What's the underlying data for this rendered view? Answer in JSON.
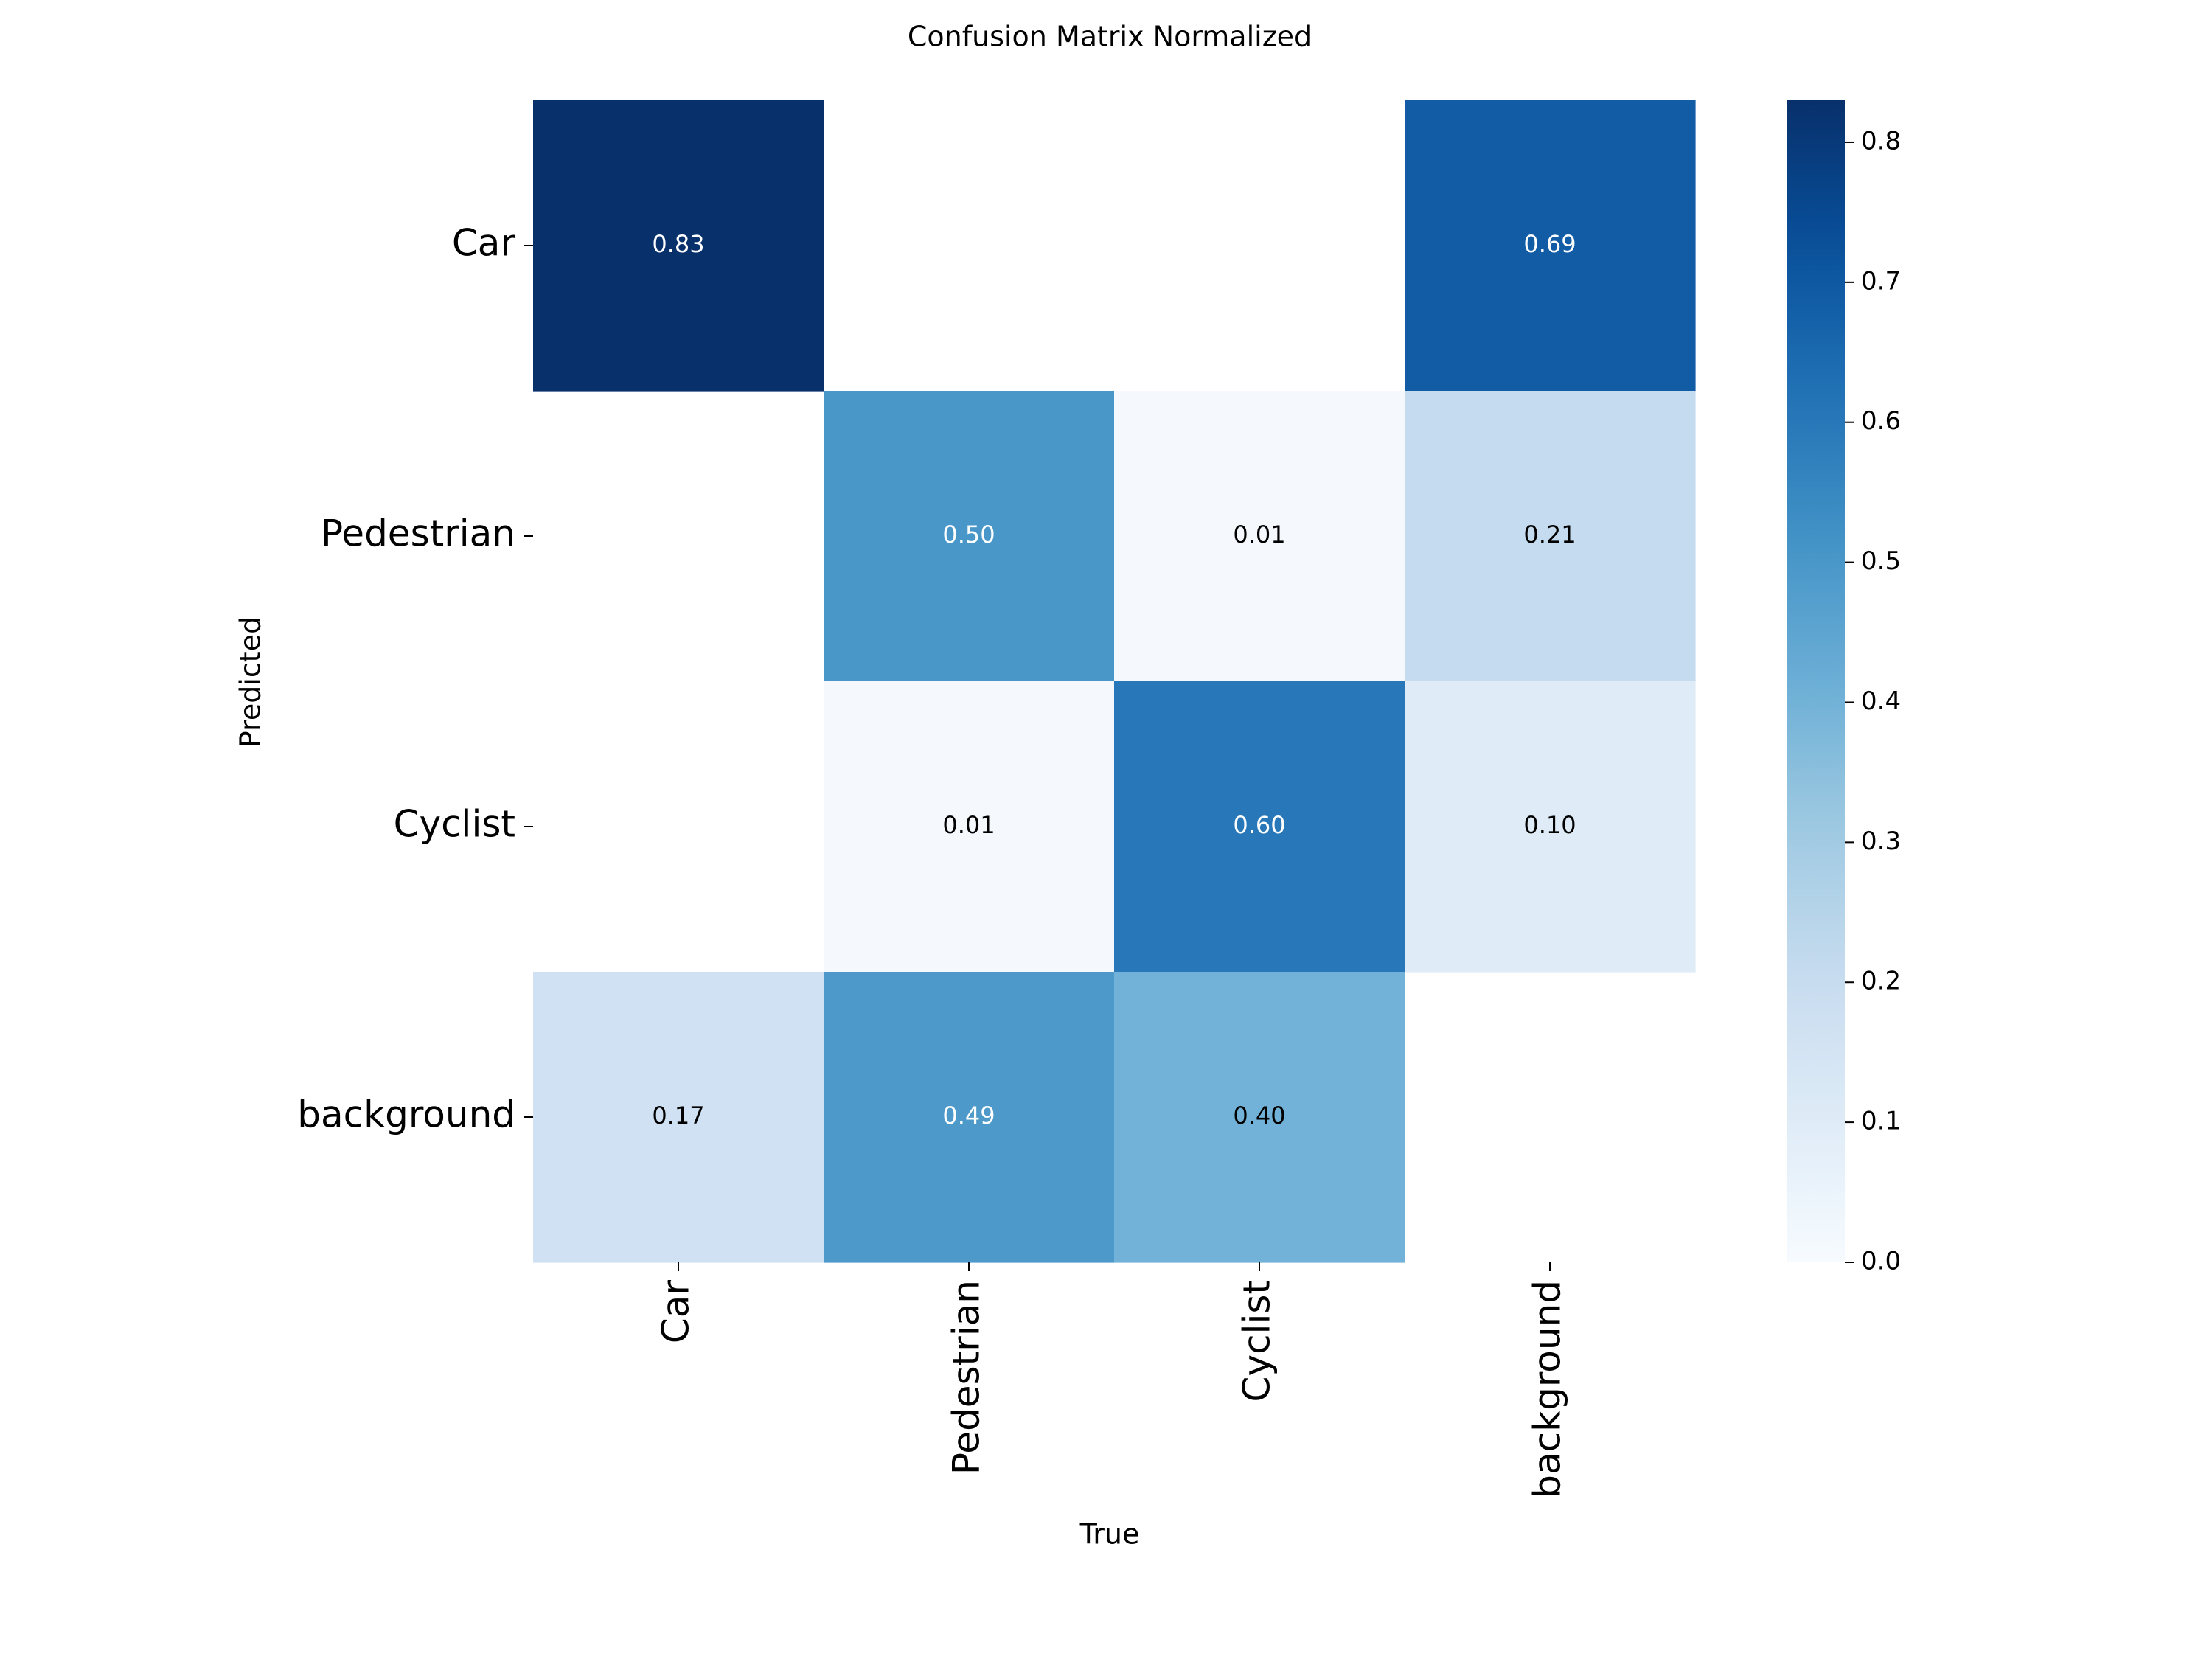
{
  "chart_data": {
    "type": "heatmap",
    "title": "Confusion Matrix Normalized",
    "xlabel": "True",
    "ylabel": "Predicted",
    "x_categories": [
      "Car",
      "Pedestrian",
      "Cyclist",
      "background"
    ],
    "y_categories": [
      "Car",
      "Pedestrian",
      "Cyclist",
      "background"
    ],
    "values": [
      [
        0.83,
        null,
        null,
        0.69
      ],
      [
        null,
        0.5,
        0.01,
        0.21
      ],
      [
        null,
        0.01,
        0.6,
        0.1
      ],
      [
        0.17,
        0.49,
        0.4,
        null
      ]
    ],
    "cell_labels": [
      [
        "0.83",
        "",
        "",
        "0.69"
      ],
      [
        "",
        "0.50",
        "0.01",
        "0.21"
      ],
      [
        "",
        "0.01",
        "0.60",
        "0.10"
      ],
      [
        "0.17",
        "0.49",
        "0.40",
        ""
      ]
    ],
    "colormap": "Blues",
    "colorbar": {
      "range": [
        0.0,
        0.83
      ],
      "ticks": [
        0.0,
        0.1,
        0.2,
        0.3,
        0.4,
        0.5,
        0.6,
        0.7,
        0.8
      ],
      "tick_labels": [
        "0.0",
        "0.1",
        "0.2",
        "0.3",
        "0.4",
        "0.5",
        "0.6",
        "0.7",
        "0.8"
      ]
    },
    "grid": false
  }
}
